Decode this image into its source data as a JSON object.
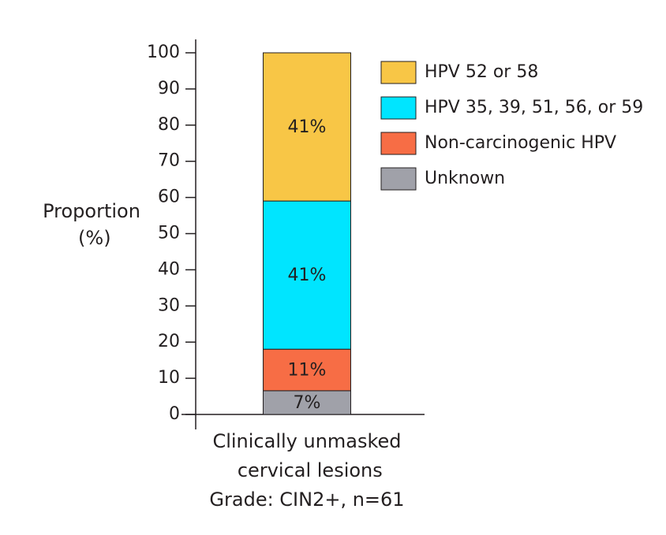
{
  "chart_data": {
    "type": "stacked_bar",
    "categories": [
      "Clinically unmasked cervical lesions"
    ],
    "xlabel": "Grade: CIN2+, n=61",
    "ylabel": "Proportion (%)",
    "series": [
      {
        "name": "Unknown",
        "color": "#a0a1a9",
        "values": [
          6.56
        ],
        "value_labels": [
          "7%"
        ]
      },
      {
        "name": "Non-carcinogenic HPV",
        "color": "#f76d45",
        "values": [
          11.48
        ],
        "value_labels": [
          "11%"
        ]
      },
      {
        "name": "HPV 35, 39, 51, 56, or 59",
        "color": "#00e5ff",
        "values": [
          40.98
        ],
        "value_labels": [
          "41%"
        ]
      },
      {
        "name": "HPV 52 or 58",
        "color": "#f8c646",
        "values": [
          40.98
        ],
        "value_labels": [
          "41%"
        ]
      }
    ],
    "ylim": [
      0,
      100
    ],
    "yticks": [
      0,
      10,
      20,
      30,
      40,
      50,
      60,
      70,
      80,
      90,
      100
    ],
    "legend": "upper right",
    "grid": false
  }
}
